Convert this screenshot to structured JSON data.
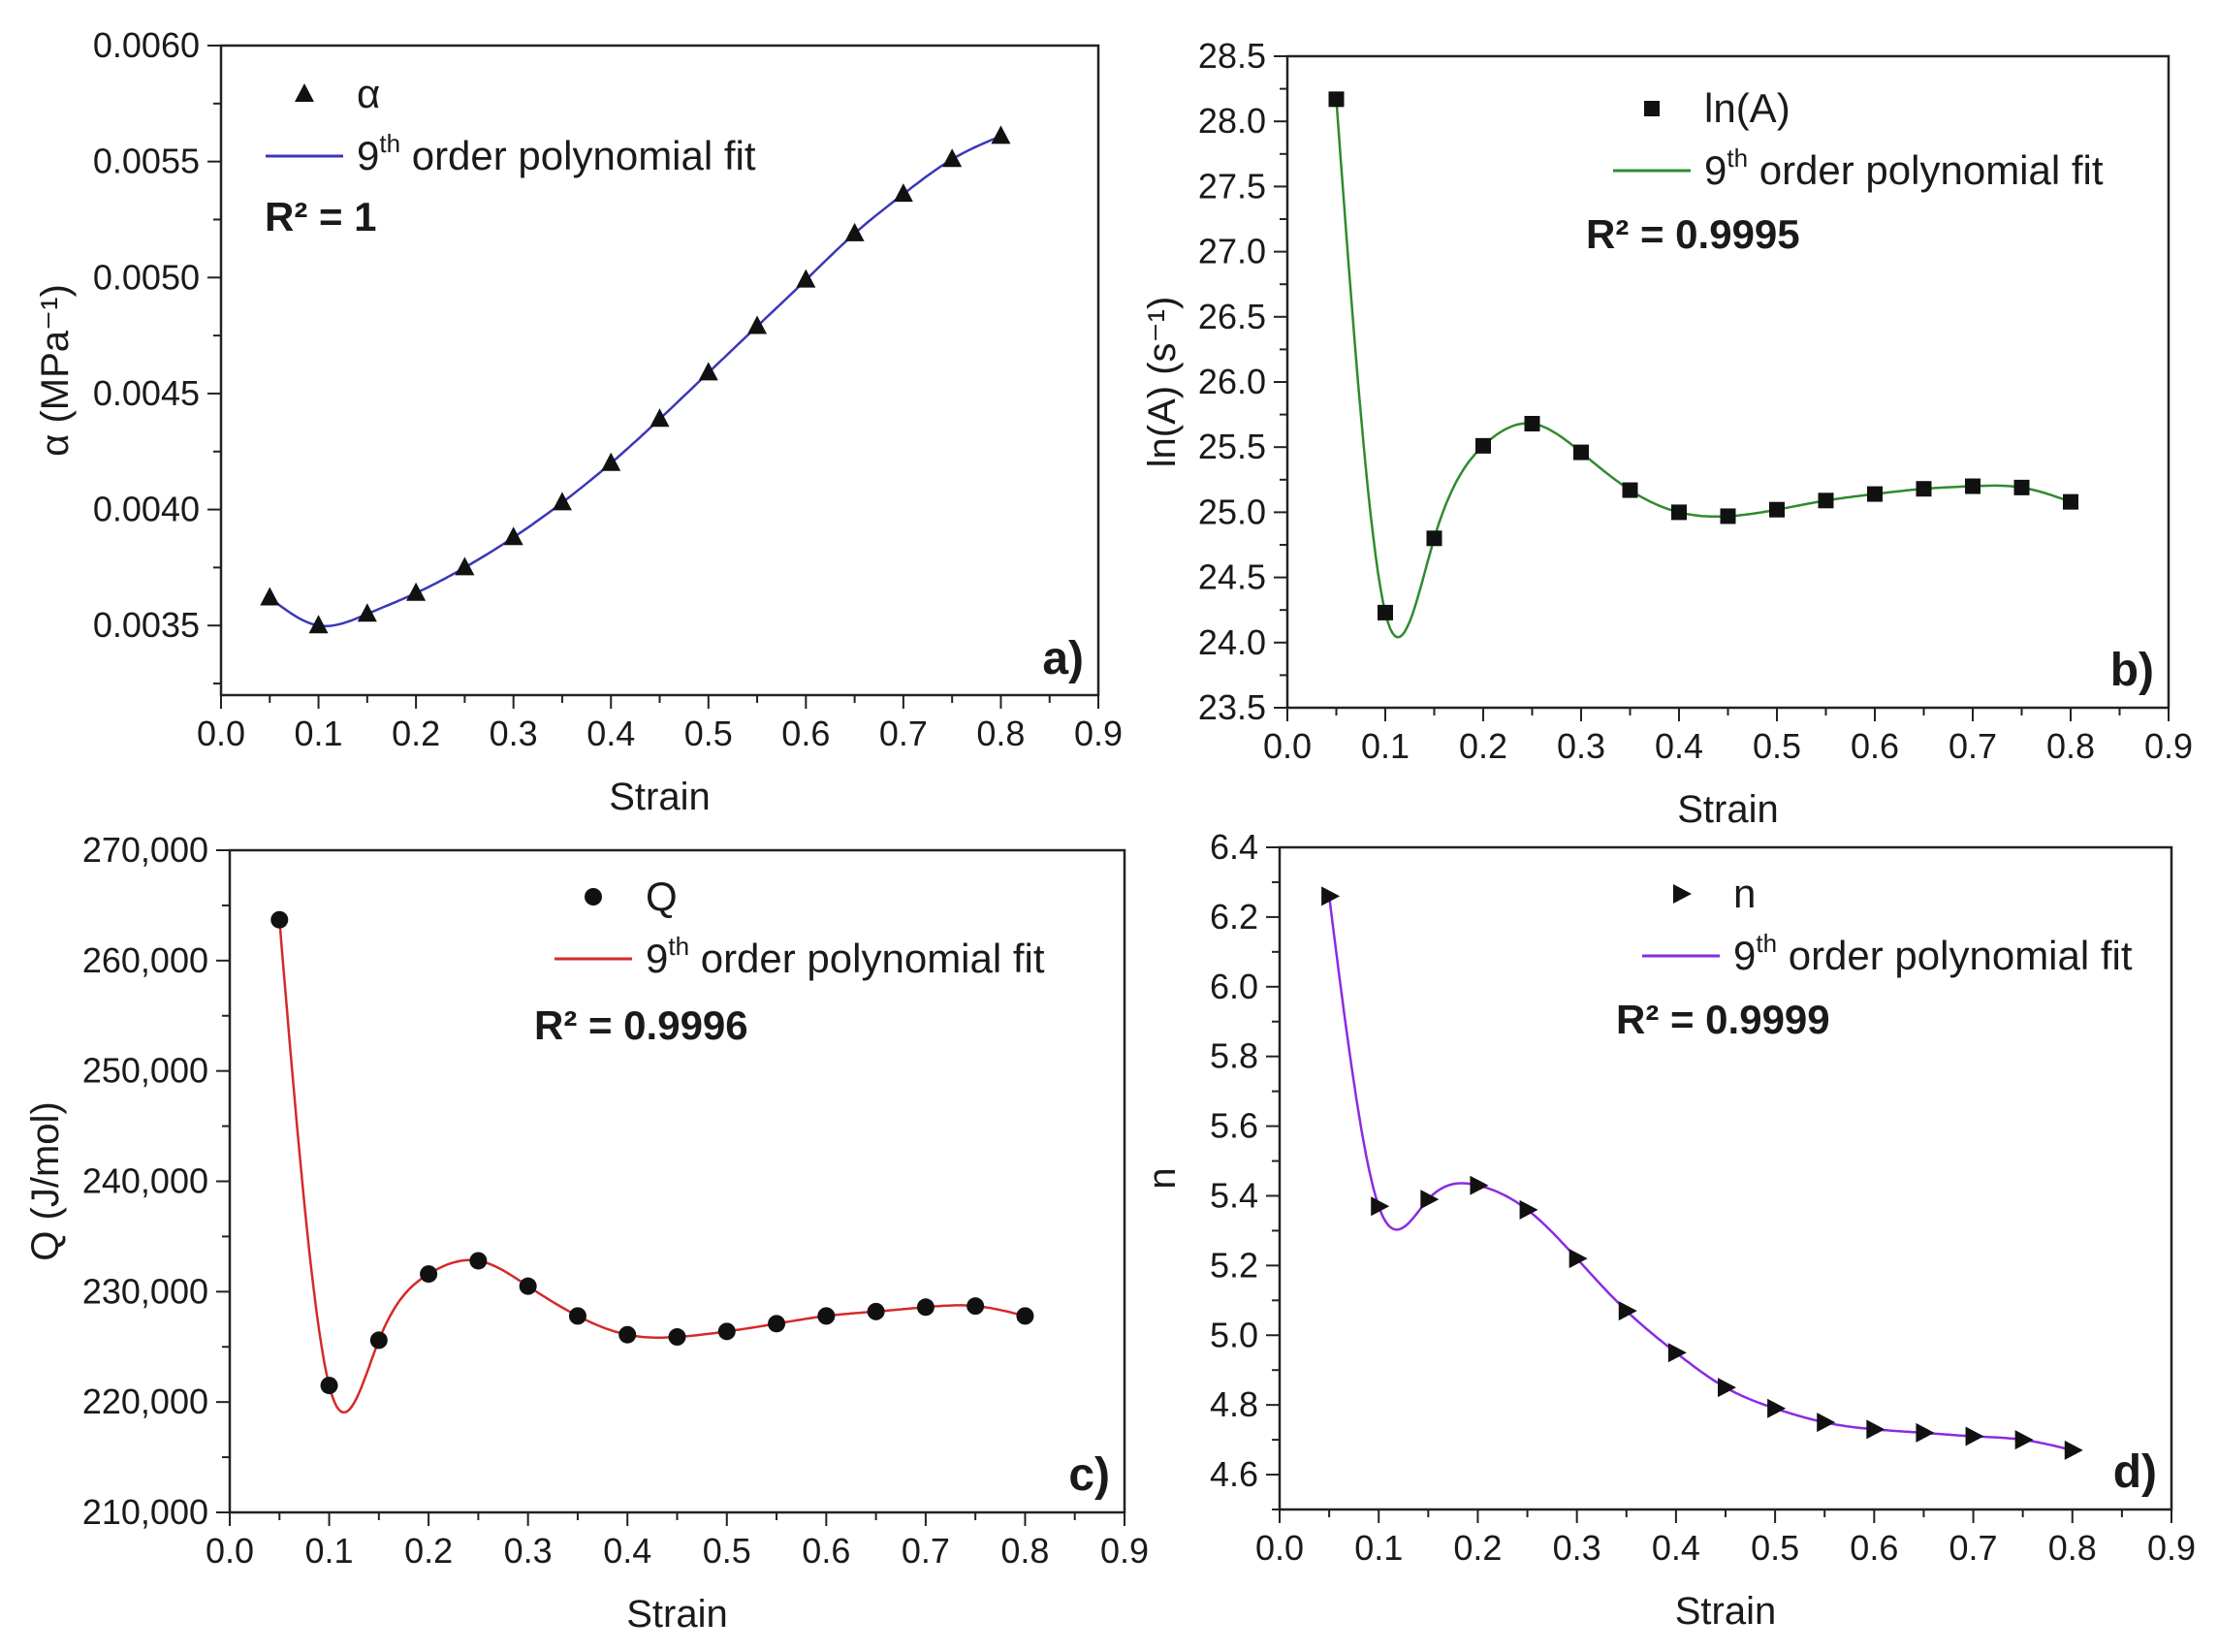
{
  "chart_data": [
    {
      "type": "scatter",
      "panel": "a)",
      "xlabel": "Strain",
      "ylabel": "α (MPa⁻¹)",
      "xlim": [
        0.0,
        0.9
      ],
      "ylim": [
        0.0032,
        0.006
      ],
      "xticks": [
        "0.0",
        "0.1",
        "0.2",
        "0.3",
        "0.4",
        "0.5",
        "0.6",
        "0.7",
        "0.8",
        "0.9"
      ],
      "yticks": [
        {
          "value": 0.0035,
          "label": "0.0035"
        },
        {
          "value": 0.004,
          "label": "0.0040"
        },
        {
          "value": 0.0045,
          "label": "0.0045"
        },
        {
          "value": 0.005,
          "label": "0.0050"
        },
        {
          "value": 0.0055,
          "label": "0.0055"
        },
        {
          "value": 0.006,
          "label": "0.0060"
        }
      ],
      "legend": {
        "marker_label": "α",
        "fit_label": "9th order polynomial fit",
        "fit_sup": "th",
        "r2": "R² = 1"
      },
      "marker": "triangle-up",
      "fit_color": "#3838b8",
      "x": [
        0.05,
        0.1,
        0.15,
        0.2,
        0.25,
        0.3,
        0.35,
        0.4,
        0.45,
        0.5,
        0.55,
        0.6,
        0.65,
        0.7,
        0.75,
        0.8
      ],
      "y": [
        0.00362,
        0.0035,
        0.00355,
        0.00364,
        0.00375,
        0.00388,
        0.00403,
        0.0042,
        0.00439,
        0.00459,
        0.00479,
        0.00499,
        0.00519,
        0.00536,
        0.00551,
        0.00561
      ]
    },
    {
      "type": "scatter",
      "panel": "b)",
      "xlabel": "Strain",
      "ylabel": "ln(A) (s⁻¹)",
      "xlim": [
        0.0,
        0.9
      ],
      "ylim": [
        23.5,
        28.5
      ],
      "xticks": [
        "0.0",
        "0.1",
        "0.2",
        "0.3",
        "0.4",
        "0.5",
        "0.6",
        "0.7",
        "0.8",
        "0.9"
      ],
      "yticks": [
        {
          "value": 23.5,
          "label": "23.5"
        },
        {
          "value": 24.0,
          "label": "24.0"
        },
        {
          "value": 24.5,
          "label": "24.5"
        },
        {
          "value": 25.0,
          "label": "25.0"
        },
        {
          "value": 25.5,
          "label": "25.5"
        },
        {
          "value": 26.0,
          "label": "26.0"
        },
        {
          "value": 26.5,
          "label": "26.5"
        },
        {
          "value": 27.0,
          "label": "27.0"
        },
        {
          "value": 27.5,
          "label": "27.5"
        },
        {
          "value": 28.0,
          "label": "28.0"
        },
        {
          "value": 28.5,
          "label": "28.5"
        }
      ],
      "legend": {
        "marker_label": "ln(A)",
        "fit_label": "9th order polynomial fit",
        "fit_sup": "th",
        "r2": "R² = 0.9995"
      },
      "marker": "square",
      "fit_color": "#2e8b2e",
      "x": [
        0.05,
        0.1,
        0.15,
        0.2,
        0.25,
        0.3,
        0.35,
        0.4,
        0.45,
        0.5,
        0.55,
        0.6,
        0.65,
        0.7,
        0.75,
        0.8
      ],
      "y": [
        28.17,
        24.23,
        24.8,
        25.51,
        25.68,
        25.46,
        25.17,
        25.0,
        24.97,
        25.02,
        25.09,
        25.14,
        25.18,
        25.2,
        25.19,
        25.08
      ]
    },
    {
      "type": "scatter",
      "panel": "c)",
      "xlabel": "Strain",
      "ylabel": "Q (J/mol)",
      "xlim": [
        0.0,
        0.9
      ],
      "ylim": [
        210000,
        270000
      ],
      "xticks": [
        "0.0",
        "0.1",
        "0.2",
        "0.3",
        "0.4",
        "0.5",
        "0.6",
        "0.7",
        "0.8",
        "0.9"
      ],
      "yticks": [
        {
          "value": 210000,
          "label": "210,000"
        },
        {
          "value": 220000,
          "label": "220,000"
        },
        {
          "value": 230000,
          "label": "230,000"
        },
        {
          "value": 240000,
          "label": "240,000"
        },
        {
          "value": 250000,
          "label": "250,000"
        },
        {
          "value": 260000,
          "label": "260,000"
        },
        {
          "value": 270000,
          "label": "270,000"
        }
      ],
      "legend": {
        "marker_label": "Q",
        "fit_label": "9th order polynomial fit",
        "fit_sup": "th",
        "r2": "R² = 0.9996"
      },
      "marker": "circle",
      "fit_color": "#d42a2a",
      "x": [
        0.05,
        0.1,
        0.15,
        0.2,
        0.25,
        0.3,
        0.35,
        0.4,
        0.45,
        0.5,
        0.55,
        0.6,
        0.65,
        0.7,
        0.75,
        0.8
      ],
      "y": [
        263700,
        221500,
        225600,
        231600,
        232800,
        230500,
        227800,
        226100,
        225900,
        226400,
        227100,
        227800,
        228200,
        228600,
        228700,
        227800
      ]
    },
    {
      "type": "scatter",
      "panel": "d)",
      "xlabel": "Strain",
      "ylabel": "n",
      "xlim": [
        0.0,
        0.9
      ],
      "ylim": [
        4.5,
        6.4
      ],
      "xticks": [
        "0.0",
        "0.1",
        "0.2",
        "0.3",
        "0.4",
        "0.5",
        "0.6",
        "0.7",
        "0.8",
        "0.9"
      ],
      "yticks": [
        {
          "value": 4.6,
          "label": "4.6"
        },
        {
          "value": 4.8,
          "label": "4.8"
        },
        {
          "value": 5.0,
          "label": "5.0"
        },
        {
          "value": 5.2,
          "label": "5.2"
        },
        {
          "value": 5.4,
          "label": "5.4"
        },
        {
          "value": 5.6,
          "label": "5.6"
        },
        {
          "value": 5.8,
          "label": "5.8"
        },
        {
          "value": 6.0,
          "label": "6.0"
        },
        {
          "value": 6.2,
          "label": "6.2"
        },
        {
          "value": 6.4,
          "label": "6.4"
        }
      ],
      "legend": {
        "marker_label": "n",
        "fit_label": "9th order polynomial fit",
        "fit_sup": "th",
        "r2": "R² = 0.9999"
      },
      "marker": "triangle-right",
      "fit_color": "#8a2be2",
      "x": [
        0.05,
        0.1,
        0.15,
        0.2,
        0.25,
        0.3,
        0.35,
        0.4,
        0.45,
        0.5,
        0.55,
        0.6,
        0.65,
        0.7,
        0.75,
        0.8
      ],
      "y": [
        6.26,
        5.37,
        5.39,
        5.43,
        5.36,
        5.22,
        5.07,
        4.95,
        4.85,
        4.79,
        4.75,
        4.73,
        4.72,
        4.71,
        4.7,
        4.67
      ]
    }
  ]
}
